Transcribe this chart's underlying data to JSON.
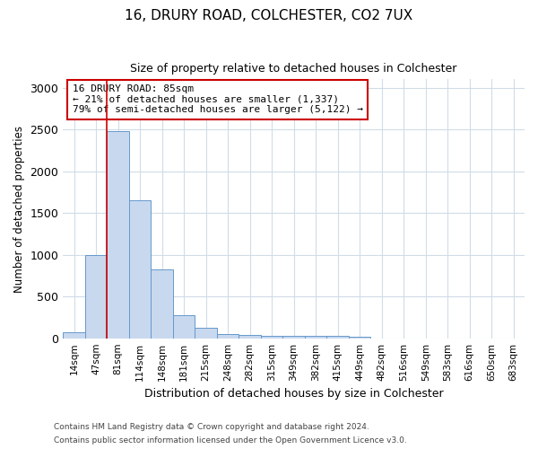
{
  "title1": "16, DRURY ROAD, COLCHESTER, CO2 7UX",
  "title2": "Size of property relative to detached houses in Colchester",
  "xlabel": "Distribution of detached houses by size in Colchester",
  "ylabel": "Number of detached properties",
  "bin_labels": [
    "14sqm",
    "47sqm",
    "81sqm",
    "114sqm",
    "148sqm",
    "181sqm",
    "215sqm",
    "248sqm",
    "282sqm",
    "315sqm",
    "349sqm",
    "382sqm",
    "415sqm",
    "449sqm",
    "482sqm",
    "516sqm",
    "549sqm",
    "583sqm",
    "616sqm",
    "650sqm",
    "683sqm"
  ],
  "bar_values": [
    75,
    1000,
    2475,
    1650,
    825,
    275,
    130,
    50,
    35,
    30,
    30,
    30,
    25,
    20,
    0,
    0,
    0,
    0,
    0,
    0,
    0
  ],
  "bar_color": "#c8d8ee",
  "bar_edge_color": "#6699cc",
  "red_line_bin_index": 2,
  "red_line_color": "#cc0000",
  "annotation_text": "16 DRURY ROAD: 85sqm\n← 21% of detached houses are smaller (1,337)\n79% of semi-detached houses are larger (5,122) →",
  "annotation_box_color": "#ffffff",
  "annotation_box_edge_color": "#cc0000",
  "ylim": [
    0,
    3100
  ],
  "yticks": [
    0,
    500,
    1000,
    1500,
    2000,
    2500,
    3000
  ],
  "footnote1": "Contains HM Land Registry data © Crown copyright and database right 2024.",
  "footnote2": "Contains public sector information licensed under the Open Government Licence v3.0.",
  "bg_color": "#ffffff",
  "plot_bg_color": "#ffffff",
  "grid_color": "#d0dce8",
  "title1_fontsize": 11,
  "title2_fontsize": 9
}
